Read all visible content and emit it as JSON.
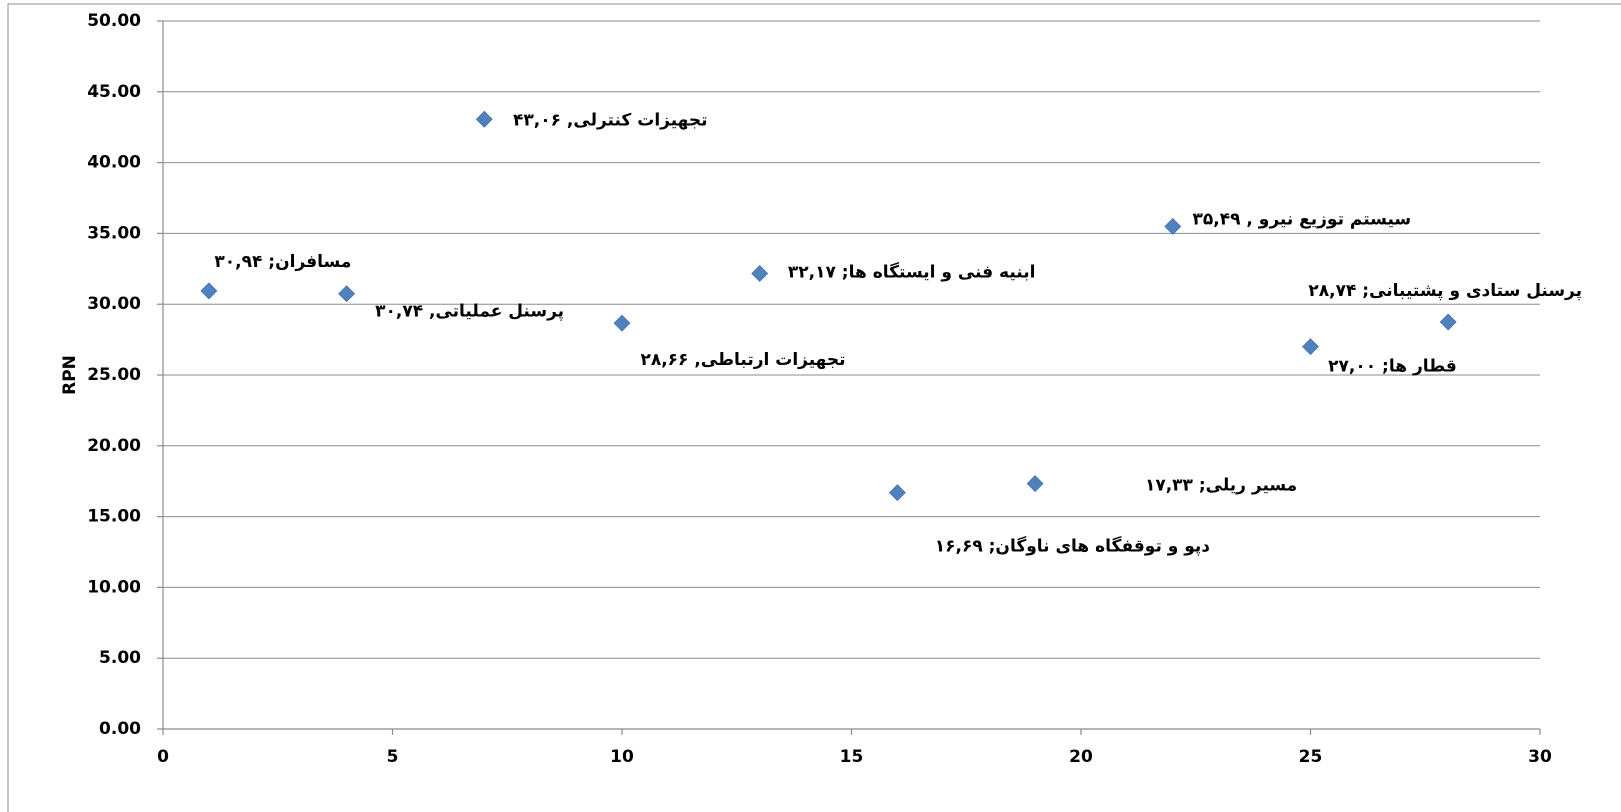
{
  "chart_data": {
    "type": "scatter",
    "y_label": "RPN",
    "x": [
      1,
      4,
      7,
      10,
      13,
      16,
      19,
      22,
      25,
      28
    ],
    "series": [
      {
        "color": "#4f81bd",
        "values": [
          30.94,
          30.74,
          43.06,
          28.66,
          32.17,
          16.69,
          17.33,
          35.49,
          27.0,
          28.74
        ],
        "value_labels": [
          "مسافران; ۳۰,۹۴",
          "پرسنل عملیاتی, ۳۰,۷۴",
          "تجهیزات کنترلی, ۴۳,۰۶",
          "تجهیزات ارتباطی, ۲۸,۶۶",
          "ابنیه فنی و ایستگاه ها; ۳۲,۱۷",
          "دپو و توقفگاه های ناوگان; ۱۶,۶۹",
          "مسیر ریلی; ۱۷,۳۳",
          "سیستم توزیع نیرو , ۳۵,۴۹",
          "قطار ها; ۲۷,۰۰",
          "پرسنل ستادی و پشتیبانی; ۲۸,۷۴"
        ]
      }
    ],
    "xlim": [
      0,
      30
    ],
    "xticks": [
      0,
      5,
      10,
      15,
      20,
      25,
      30
    ],
    "ylim": [
      0,
      50
    ],
    "yticks": [
      {
        "value": 0,
        "label": "0.00"
      },
      {
        "value": 5,
        "label": "5.00"
      },
      {
        "value": 10,
        "label": "10.00"
      },
      {
        "value": 15,
        "label": "15.00"
      },
      {
        "value": 20,
        "label": "20.00"
      },
      {
        "value": 25,
        "label": "25.00"
      },
      {
        "value": 30,
        "label": "30.00"
      },
      {
        "value": 35,
        "label": "35.00"
      },
      {
        "value": 40,
        "label": "40.00"
      },
      {
        "value": 45,
        "label": "45.00"
      },
      {
        "value": 50,
        "label": "50.00"
      }
    ],
    "grid": true
  }
}
